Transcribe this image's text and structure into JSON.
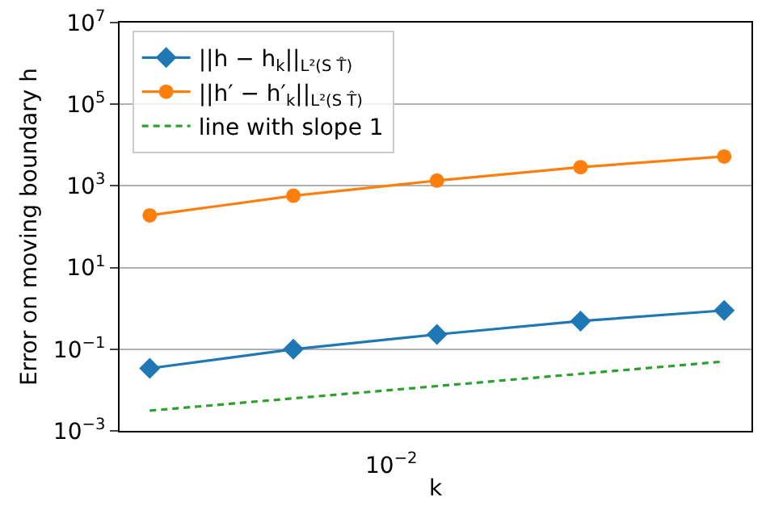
{
  "chart_data": {
    "type": "line",
    "xlabel": "k",
    "ylabel": "Error on moving boundary h",
    "log": "y",
    "grid": "y",
    "legend": "top left",
    "categories": [
      null,
      null,
      null,
      null,
      null
    ],
    "annotations": [
      "10$^{−2}$"
    ],
    "ylim": [
      0.001,
      10000000
    ],
    "yticks": [
      {
        "value": 0.001,
        "label": "10$^{−3}$"
      },
      {
        "value": 0.1,
        "label": "10$^{−1}$"
      },
      {
        "value": 10,
        "label": "10$^{1}$"
      },
      {
        "value": 1000,
        "label": "10$^{3}$"
      },
      {
        "value": 100000,
        "label": "10$^{5}$"
      },
      {
        "value": 10000000,
        "label": "10$^{7}$"
      }
    ],
    "series": [
      {
        "name": "||h − h$_{k}$||$_{L²(S T̂)}$",
        "color": "#1f77b4",
        "marker": "diamond",
        "line_style": "solid",
        "values": [
          0.034,
          0.1,
          0.23,
          0.49,
          0.89
        ]
      },
      {
        "name": "||h′ − h′$_{k}$||$_{L²(S T̂)}$",
        "color": "#ff7f0e",
        "marker": "circle",
        "line_style": "solid",
        "values": [
          190,
          575,
          1350,
          2880,
          5250
        ]
      },
      {
        "name": "line with slope 1",
        "color": "#2ca02c",
        "marker": "none",
        "line_style": "dashed",
        "values": [
          0.003125,
          0.00625,
          0.0125,
          0.025,
          0.05
        ]
      }
    ]
  }
}
